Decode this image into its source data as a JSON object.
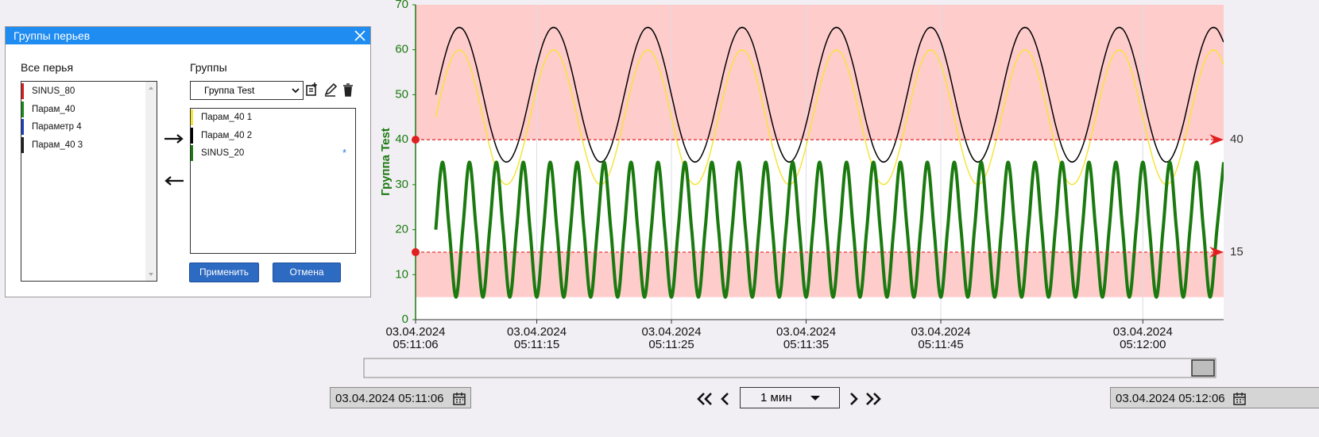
{
  "dialog": {
    "title": "Группы перьев",
    "all_pens_label": "Все перья",
    "all_pens": [
      {
        "name": "SINUS_80",
        "color": "#d42020"
      },
      {
        "name": "Парам_40",
        "color": "#1a8a1a"
      },
      {
        "name": "Параметр 4",
        "color": "#2040c0"
      },
      {
        "name": "Парам_40 3",
        "color": "#202020"
      }
    ],
    "groups_label": "Группы",
    "group_selected": "Группа Test",
    "modified_mark": "*",
    "apply": "Применить",
    "cancel": "Отмена"
  },
  "chart_data": {
    "type": "line",
    "y_label": "Группа Test",
    "axis_color": "#1a7a0f",
    "grid": "x",
    "xlim": [
      "05:11:06",
      "05:12:06"
    ],
    "xticks": [
      {
        "value": "05:11:06",
        "label": "03.04.2024 05:11:06"
      },
      {
        "value": "05:11:15",
        "label": "03.04.2024 05:11:15"
      },
      {
        "value": "05:11:25",
        "label": "03.04.2024 05:11:25"
      },
      {
        "value": "05:11:35",
        "label": "03.04.2024 05:11:35"
      },
      {
        "value": "05:11:45",
        "label": "03.04.2024 05:11:45"
      },
      {
        "value": "05:12:00",
        "label": "03.04.2024 05:12:00"
      }
    ],
    "ylim": [
      0,
      70
    ],
    "yticks": [
      0,
      10,
      20,
      30,
      40,
      50,
      60,
      70
    ],
    "bands": [
      {
        "from": 40,
        "to": 70,
        "color": "#ffcccc"
      },
      {
        "from": 5,
        "to": 15,
        "color": "#ffcccc"
      }
    ],
    "limits": [
      40,
      15
    ],
    "limit_color": "#e02020",
    "x": [
      "05:11:07.5",
      "05:11:08",
      "05:11:08.5",
      "05:11:09",
      "05:11:09.5",
      "05:11:10",
      "05:11:10.5",
      "05:11:11",
      "05:11:11.5",
      "05:11:12",
      "05:11:12.5",
      "05:11:13",
      "05:11:13.5",
      "05:11:14",
      "05:11:14.5",
      "05:11:15",
      "05:11:15.5",
      "05:11:16",
      "05:11:16.5",
      "05:11:17",
      "05:11:17.5",
      "05:11:18",
      "05:11:18.5",
      "05:11:19",
      "05:11:19.5",
      "05:11:20",
      "05:11:20.5",
      "05:11:21",
      "05:11:21.5",
      "05:11:22",
      "05:11:22.5",
      "05:11:23",
      "05:11:23.5",
      "05:11:24",
      "05:11:24.5",
      "05:11:25",
      "05:11:25.5",
      "05:11:26",
      "05:11:26.5",
      "05:11:27",
      "05:11:27.5",
      "05:11:28",
      "05:11:28.5",
      "05:11:29",
      "05:11:29.5",
      "05:11:30",
      "05:11:30.5",
      "05:11:31",
      "05:11:31.5",
      "05:11:32",
      "05:11:32.5",
      "05:11:33",
      "05:11:33.5",
      "05:11:34",
      "05:11:34.5",
      "05:11:35",
      "05:11:35.5",
      "05:11:36",
      "05:11:36.5",
      "05:11:37",
      "05:11:37.5",
      "05:11:38",
      "05:11:38.5",
      "05:11:39",
      "05:11:39.5",
      "05:11:40",
      "05:11:40.5",
      "05:11:41",
      "05:11:41.5",
      "05:11:42",
      "05:11:42.5",
      "05:11:43",
      "05:11:43.5",
      "05:11:44",
      "05:11:44.5",
      "05:11:45",
      "05:11:45.5",
      "05:11:46",
      "05:11:46.5",
      "05:11:47",
      "05:11:47.5",
      "05:11:48",
      "05:11:48.5",
      "05:11:49",
      "05:11:49.5",
      "05:11:50",
      "05:11:50.5",
      "05:11:51",
      "05:11:51.5",
      "05:11:52",
      "05:11:52.5",
      "05:11:53",
      "05:11:53.5",
      "05:11:54",
      "05:11:54.5",
      "05:11:55",
      "05:11:55.5",
      "05:11:56",
      "05:11:56.5",
      "05:11:57",
      "05:11:57.5",
      "05:11:58",
      "05:11:58.5",
      "05:11:59",
      "05:11:59.5",
      "05:12:00",
      "05:12:00.5",
      "05:12:01",
      "05:12:01.5",
      "05:12:02",
      "05:12:02.5",
      "05:12:03",
      "05:12:03.5",
      "05:12:04",
      "05:12:04.5",
      "05:12:05",
      "05:12:05.5",
      "05:12:06"
    ],
    "series": [
      {
        "name": "Парам_40 1",
        "color": "#f5e43a",
        "width": 1.5,
        "values": [
          45,
          51.5,
          56.7,
          59.6,
          59.6,
          56.7,
          51.5,
          45,
          38.5,
          33.3,
          30.4,
          30.4,
          33.3,
          38.5,
          45,
          51.5,
          56.7,
          59.6,
          59.6,
          56.7,
          51.5,
          45,
          38.5,
          33.3,
          30.4,
          30.4,
          33.3,
          38.5,
          45,
          51.5,
          56.7,
          59.6,
          59.6,
          56.7,
          51.5,
          45,
          38.5,
          33.3,
          30.4,
          30.4,
          33.3,
          38.5,
          45,
          51.5,
          56.7,
          59.6,
          59.6,
          56.7,
          51.5,
          45,
          38.5,
          33.3,
          30.4,
          30.4,
          33.3,
          38.5,
          45,
          51.5,
          56.7,
          59.6,
          59.6,
          56.7,
          51.5,
          45,
          38.5,
          33.3,
          30.4,
          30.4,
          33.3,
          38.5,
          45,
          51.5,
          56.7,
          59.6,
          59.6,
          56.7,
          51.5,
          45,
          38.5,
          33.3,
          30.4,
          30.4,
          33.3,
          38.5,
          45,
          51.5,
          56.7,
          59.6,
          59.6,
          56.7,
          51.5,
          45,
          38.5,
          33.3,
          30.4,
          30.4,
          33.3,
          38.5,
          45,
          51.5,
          56.7,
          59.6,
          59.6,
          56.7,
          51.5,
          45,
          38.5,
          33.3,
          30.4,
          30.4,
          33.3,
          38.5,
          45,
          51.5,
          56.7,
          59.6,
          59.6,
          56.7
        ]
      },
      {
        "name": "Парам_40 2",
        "color": "#000000",
        "width": 1.5,
        "values": [
          50,
          56.5,
          61.7,
          64.6,
          64.6,
          61.7,
          56.5,
          50,
          43.5,
          38.3,
          35.4,
          35.4,
          38.3,
          43.5,
          50,
          56.5,
          61.7,
          64.6,
          64.6,
          61.7,
          56.5,
          50,
          43.5,
          38.3,
          35.4,
          35.4,
          38.3,
          43.5,
          50,
          56.5,
          61.7,
          64.6,
          64.6,
          61.7,
          56.5,
          50,
          43.5,
          38.3,
          35.4,
          35.4,
          38.3,
          43.5,
          50,
          56.5,
          61.7,
          64.6,
          64.6,
          61.7,
          56.5,
          50,
          43.5,
          38.3,
          35.4,
          35.4,
          38.3,
          43.5,
          50,
          56.5,
          61.7,
          64.6,
          64.6,
          61.7,
          56.5,
          50,
          43.5,
          38.3,
          35.4,
          35.4,
          38.3,
          43.5,
          50,
          56.5,
          61.7,
          64.6,
          64.6,
          61.7,
          56.5,
          50,
          43.5,
          38.3,
          35.4,
          35.4,
          38.3,
          43.5,
          50,
          56.5,
          61.7,
          64.6,
          64.6,
          61.7,
          56.5,
          50,
          43.5,
          38.3,
          35.4,
          35.4,
          38.3,
          43.5,
          50,
          56.5,
          61.7,
          64.6,
          64.6,
          61.7,
          56.5,
          50,
          43.5,
          38.3,
          35.4,
          35.4,
          38.3,
          43.5,
          50,
          56.5,
          61.7,
          64.6,
          64.6,
          61.7
        ]
      },
      {
        "name": "SINUS_20",
        "color": "#1a7a0f",
        "width": 4,
        "values": [
          20,
          35,
          20,
          5,
          20,
          35,
          20,
          5,
          20,
          35,
          20,
          5,
          20,
          35,
          20,
          5,
          20,
          35,
          20,
          5,
          20,
          35,
          20,
          5,
          20,
          35,
          20,
          5,
          20,
          35,
          20,
          5,
          20,
          35,
          20,
          5,
          20,
          35,
          20,
          5,
          20,
          35,
          20,
          5,
          20,
          35,
          20,
          5,
          20,
          35,
          20,
          5,
          20,
          35,
          20,
          5,
          20,
          35,
          20,
          5,
          20,
          35,
          20,
          5,
          20,
          35,
          20,
          5,
          20,
          35,
          20,
          5,
          20,
          35,
          20,
          5,
          20,
          35,
          20,
          5,
          20,
          35,
          20,
          5,
          20,
          35,
          20,
          5,
          20,
          35,
          20,
          5,
          20,
          35,
          20,
          5,
          20,
          35,
          20,
          5,
          20,
          35,
          20,
          5,
          20,
          35,
          20,
          5,
          20,
          35,
          20,
          5,
          20,
          35,
          20,
          5,
          20,
          35
        ]
      }
    ]
  },
  "controls": {
    "start": "03.04.2024 05:11:06",
    "end": "03.04.2024 05:12:06",
    "period": "1 мин"
  }
}
